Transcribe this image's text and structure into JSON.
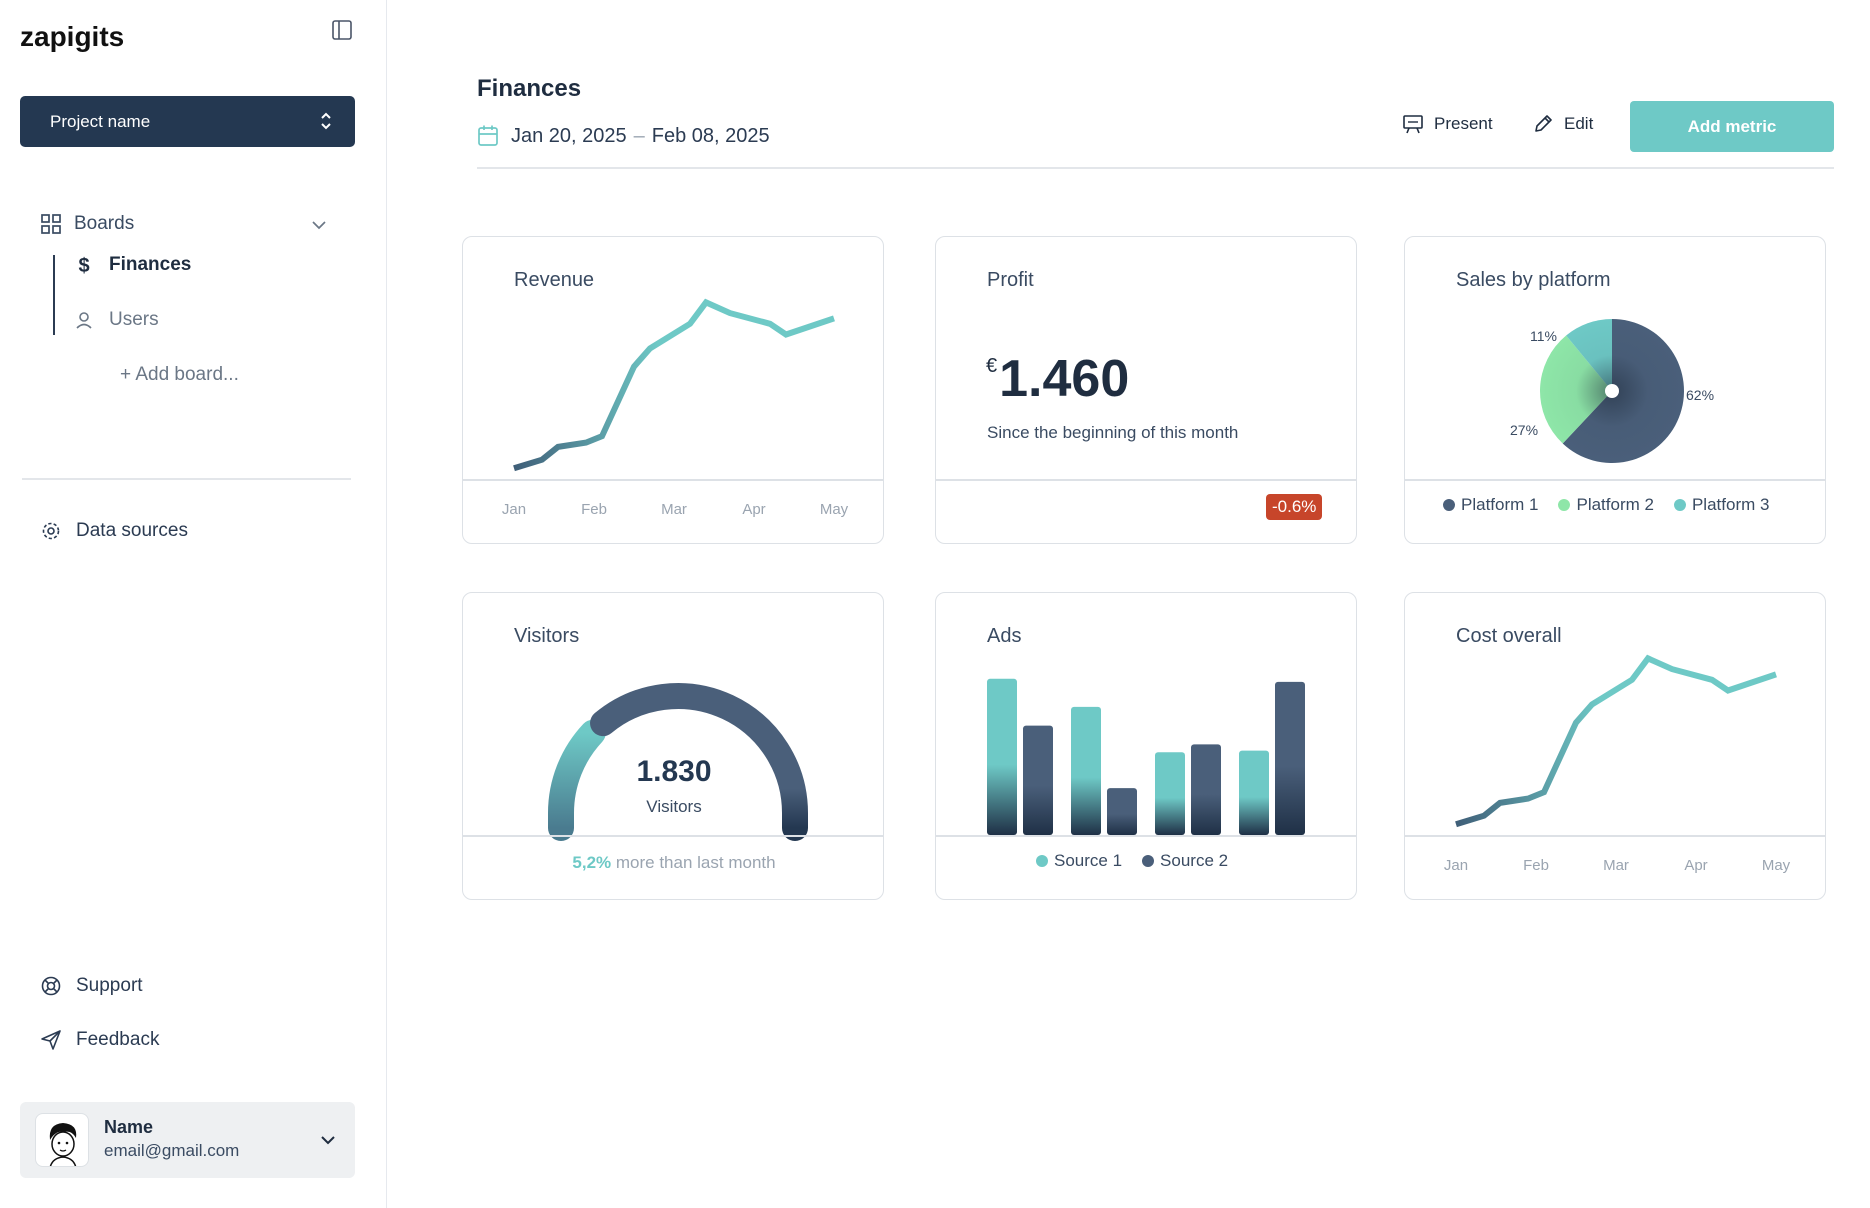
{
  "colors": {
    "navy": "#243851",
    "teal": "#6ec9c6",
    "slate": "#4a5f7a",
    "mint": "#8ee6a8",
    "badge": "#c7452a"
  },
  "sidebar": {
    "logo_text": "zapigits",
    "project_label": "Project name",
    "boards_label": "Boards",
    "items": [
      {
        "label": "Finances",
        "icon": "dollar-icon",
        "active": true
      },
      {
        "label": "Users",
        "icon": "user-icon",
        "active": false
      }
    ],
    "add_board_label": "+ Add board...",
    "data_sources_label": "Data sources",
    "support_label": "Support",
    "feedback_label": "Feedback",
    "user": {
      "name": "Name",
      "email": "email@gmail.com"
    }
  },
  "header": {
    "title": "Finances",
    "date_start": "Jan 20, 2025",
    "date_sep": "–",
    "date_end": "Feb 08, 2025",
    "present_label": "Present",
    "edit_label": "Edit",
    "add_metric_label": "Add metric"
  },
  "cards": {
    "revenue": {
      "title": "Revenue"
    },
    "profit": {
      "title": "Profit",
      "currency": "€",
      "value": "1.460",
      "subtitle": "Since the beginning of this month",
      "change": "-0.6%"
    },
    "sales": {
      "title": "Sales by platform"
    },
    "visitors": {
      "title": "Visitors",
      "value": "1.830",
      "label": "Visitors",
      "change": "5,2%",
      "change_text": " more than last month"
    },
    "ads": {
      "title": "Ads"
    },
    "cost": {
      "title": "Cost overall"
    }
  },
  "chart_data": [
    {
      "id": "revenue",
      "type": "line",
      "title": "Revenue",
      "x": [
        "Jan",
        "Feb",
        "Mar",
        "Apr",
        "May"
      ],
      "points_x": [
        0,
        0.35,
        0.55,
        0.9,
        1.1,
        1.5,
        1.7,
        2.2,
        2.4,
        2.7,
        3.2,
        3.4,
        4.0
      ],
      "points_y": [
        7,
        7.8,
        9,
        9.4,
        10,
        16.5,
        18.2,
        20.5,
        22.5,
        21.5,
        20.5,
        19.5,
        21
      ],
      "ylim": [
        6,
        23
      ]
    },
    {
      "id": "sales",
      "type": "pie",
      "title": "Sales by platform",
      "categories": [
        "Platform 1",
        "Platform 2",
        "Platform 3"
      ],
      "values": [
        62,
        27,
        11
      ],
      "labels": [
        "62%",
        "27%",
        "11%"
      ],
      "colors": [
        "#4a5f7a",
        "#8ee6a8",
        "#6ec9c6"
      ]
    },
    {
      "id": "visitors",
      "type": "gauge",
      "title": "Visitors",
      "value": 1830,
      "segment_fraction": 0.25
    },
    {
      "id": "ads",
      "type": "bar",
      "title": "Ads",
      "categories": [
        "1",
        "2",
        "3",
        "4"
      ],
      "series": [
        {
          "name": "Source 1",
          "values": [
            100,
            82,
            53,
            54
          ]
        },
        {
          "name": "Source 2",
          "values": [
            70,
            30,
            58,
            98
          ]
        }
      ],
      "ylim": [
        0,
        105
      ],
      "colors": [
        "#6ec9c6",
        "#4a5f7a"
      ]
    },
    {
      "id": "cost",
      "type": "line",
      "title": "Cost overall",
      "x": [
        "Jan",
        "Feb",
        "Mar",
        "Apr",
        "May"
      ],
      "points_x": [
        0,
        0.35,
        0.55,
        0.9,
        1.1,
        1.5,
        1.7,
        2.2,
        2.4,
        2.7,
        3.2,
        3.4,
        4.0
      ],
      "points_y": [
        7,
        7.8,
        9,
        9.4,
        10,
        16.5,
        18.2,
        20.5,
        22.5,
        21.5,
        20.5,
        19.5,
        21
      ],
      "ylim": [
        6,
        23
      ]
    }
  ]
}
